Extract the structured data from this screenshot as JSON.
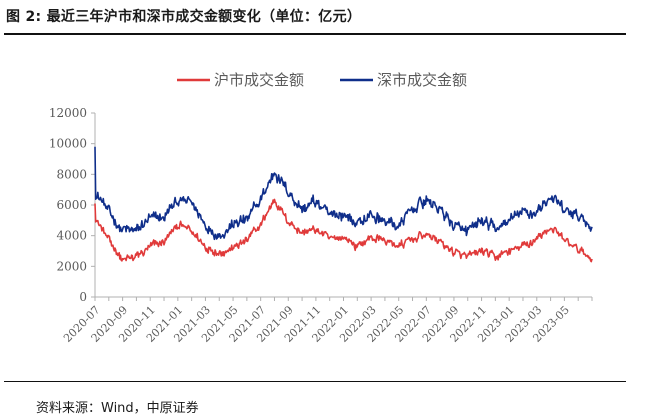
{
  "header": {
    "title": "图 2:  最近三年沪市和深市成交金额变化（单位：亿元）"
  },
  "footer": {
    "source": "资料来源：Wind，中原证券"
  },
  "colors": {
    "sh": "#e03a3a",
    "sz": "#0f2e8a",
    "axis": "#b0b0b0",
    "rule": "#111111"
  },
  "chart_data": {
    "type": "line",
    "title": "最近三年沪市和深市成交金额变化（单位：亿元）",
    "ylabel": "亿元",
    "xlabel": "",
    "ylim": [
      0,
      12000
    ],
    "yticks": [
      0,
      2000,
      4000,
      6000,
      8000,
      10000,
      12000
    ],
    "grid": false,
    "legend_position": "top",
    "x": [
      "2020-07",
      "2020-08",
      "2020-09",
      "2020-10",
      "2020-11",
      "2020-12",
      "2021-01",
      "2021-02",
      "2021-03",
      "2021-04",
      "2021-05",
      "2021-06",
      "2021-07",
      "2021-08",
      "2021-09",
      "2021-10",
      "2021-11",
      "2021-12",
      "2022-01",
      "2022-02",
      "2022-03",
      "2022-04",
      "2022-05",
      "2022-06",
      "2022-07",
      "2022-08",
      "2022-09",
      "2022-10",
      "2022-11",
      "2022-12",
      "2023-01",
      "2023-02",
      "2023-03",
      "2023-04",
      "2023-05",
      "2023-06",
      "2023-07"
    ],
    "xtick_labels": [
      "2020-07",
      "2020-09",
      "2020-11",
      "2021-01",
      "2021-03",
      "2021-05",
      "2021-07",
      "2021-09",
      "2021-11",
      "2022-01",
      "2022-03",
      "2022-05",
      "2022-07",
      "2022-09",
      "2022-11",
      "2023-01",
      "2023-03",
      "2023-05"
    ],
    "series": [
      {
        "name": "沪市成交金额",
        "color": "#e03a3a",
        "values": [
          5200,
          3700,
          2400,
          2600,
          3300,
          3600,
          4700,
          4300,
          3300,
          2900,
          3200,
          3700,
          4700,
          6400,
          4900,
          4200,
          4400,
          3800,
          3900,
          3300,
          3900,
          3700,
          3300,
          3800,
          4100,
          3600,
          2900,
          2600,
          3000,
          2600,
          3000,
          3300,
          3800,
          4500,
          3700,
          3100,
          2500
        ]
      },
      {
        "name": "深市成交金额",
        "color": "#0f2e8a",
        "values": [
          6800,
          5600,
          4300,
          4400,
          5100,
          5200,
          6300,
          6200,
          4700,
          4000,
          4700,
          5100,
          6300,
          8200,
          6800,
          5700,
          6300,
          5300,
          5400,
          4800,
          5300,
          5000,
          4600,
          5800,
          6300,
          5700,
          4700,
          4200,
          5000,
          4400,
          5000,
          5500,
          5500,
          6600,
          5600,
          5300,
          4600
        ]
      }
    ]
  }
}
